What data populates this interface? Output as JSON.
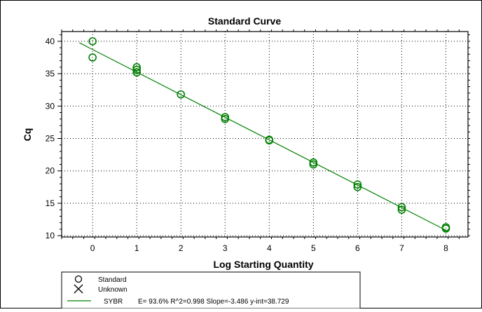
{
  "chart_data": {
    "type": "scatter",
    "title": "Standard Curve",
    "xlabel": "Log Starting Quantity",
    "ylabel": "Cq",
    "xlim": [
      -0.7,
      8.5
    ],
    "ylim": [
      9.8,
      41.5
    ],
    "x_ticks": [
      0,
      1,
      2,
      3,
      4,
      5,
      6,
      7,
      8
    ],
    "y_ticks": [
      10,
      15,
      20,
      25,
      30,
      35,
      40
    ],
    "grid": true,
    "grid_style": "dotted",
    "legend_position": "bottom-left",
    "series": [
      {
        "name": "Standard",
        "marker": "circle",
        "color": "#008000",
        "points": [
          {
            "x": 0,
            "y": 40.0
          },
          {
            "x": 0,
            "y": 37.5
          },
          {
            "x": 1,
            "y": 36.0
          },
          {
            "x": 1,
            "y": 35.6
          },
          {
            "x": 1,
            "y": 35.2
          },
          {
            "x": 2,
            "y": 31.8
          },
          {
            "x": 3,
            "y": 28.3
          },
          {
            "x": 3,
            "y": 28.0
          },
          {
            "x": 4,
            "y": 24.8
          },
          {
            "x": 4,
            "y": 24.7
          },
          {
            "x": 5,
            "y": 21.3
          },
          {
            "x": 5,
            "y": 21.0
          },
          {
            "x": 6,
            "y": 17.9
          },
          {
            "x": 6,
            "y": 17.5
          },
          {
            "x": 7,
            "y": 14.4
          },
          {
            "x": 7,
            "y": 14.0
          },
          {
            "x": 8,
            "y": 11.3
          },
          {
            "x": 8,
            "y": 11.1
          }
        ]
      },
      {
        "name": "Unknown",
        "marker": "x",
        "color": "#000000",
        "points": []
      }
    ],
    "fit_line": {
      "color": "#008000",
      "x_range": [
        -0.3,
        8.0
      ],
      "slope": -3.486,
      "intercept": 38.729
    },
    "legend": {
      "entries": [
        {
          "marker": "circle",
          "label": "Standard"
        },
        {
          "marker": "x",
          "label": "Unknown"
        },
        {
          "marker": "line",
          "label": "SYBR",
          "stats": "E= 93.6% R^2=0.998 Slope=-3.486 y-int=38.729"
        }
      ]
    }
  }
}
